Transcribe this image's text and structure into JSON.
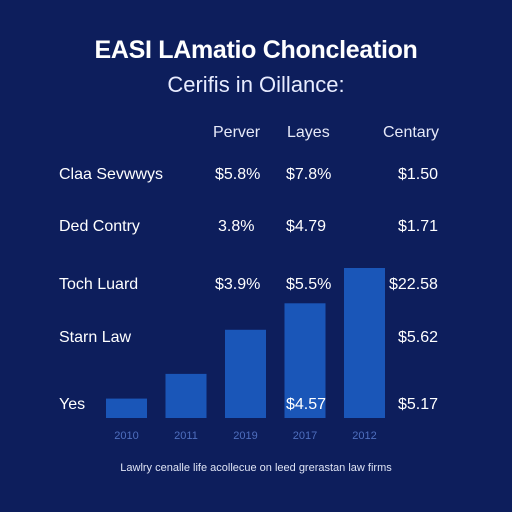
{
  "chart_data": {
    "type": "bar",
    "title": "EASI LAmatio Choncleation",
    "subtitle": "Cerifis in Oillance:",
    "table": {
      "columns": [
        "Perver",
        "Layes",
        "Centary"
      ],
      "rows": [
        {
          "label": "Claa Sevwwys",
          "values": [
            "$5.8%",
            "$7.8%",
            "$1.50"
          ]
        },
        {
          "label": "Ded Contry",
          "values": [
            "3.8%",
            "$4.79",
            "$1.71"
          ]
        },
        {
          "label": "Toch Luard",
          "values": [
            "$3.9%",
            "$5.5%",
            "$22.58"
          ]
        },
        {
          "label": "Starn Law",
          "values": [
            "",
            "",
            "$5.62"
          ]
        },
        {
          "label": "Yes",
          "values": [
            "",
            "$4.57",
            "$5.17"
          ]
        }
      ]
    },
    "categories": [
      "2010",
      "2011",
      "2019",
      "2017",
      "2012"
    ],
    "values": [
      0.11,
      0.25,
      0.5,
      0.65,
      0.85
    ],
    "ylim": [
      0,
      1
    ],
    "grid": false,
    "bar_color": "#1a56b8",
    "footnote": "Lawlry cenalle life acollecue on leed grerastan law firms"
  }
}
